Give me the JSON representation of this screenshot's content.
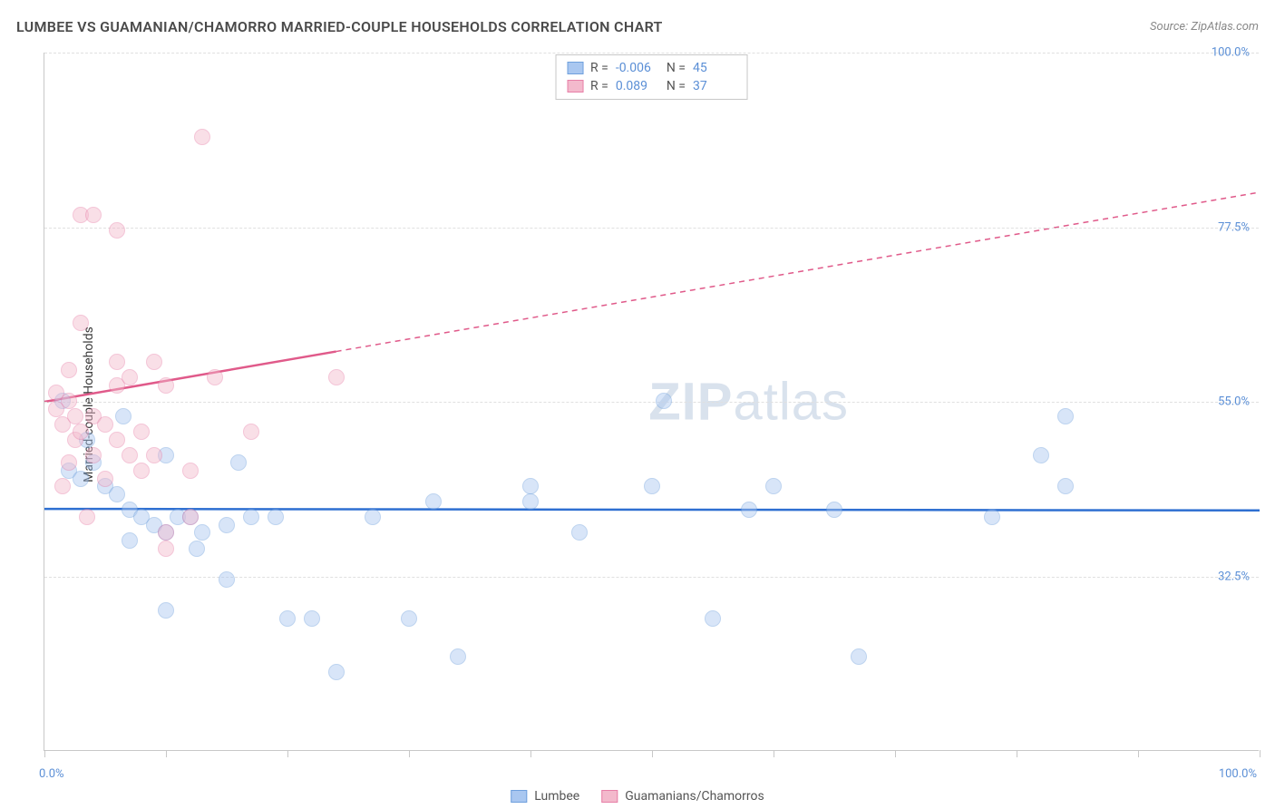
{
  "title": "LUMBEE VS GUAMANIAN/CHAMORRO MARRIED-COUPLE HOUSEHOLDS CORRELATION CHART",
  "source": "Source: ZipAtlas.com",
  "y_axis_label": "Married-couple Households",
  "watermark": {
    "zip": "ZIP",
    "atlas": "atlas"
  },
  "chart": {
    "type": "scatter",
    "xlim": [
      0,
      100
    ],
    "ylim": [
      10,
      100
    ],
    "y_ticks": [
      32.5,
      55.0,
      77.5,
      100.0
    ],
    "y_tick_labels": [
      "32.5%",
      "55.0%",
      "77.5%",
      "100.0%"
    ],
    "x_ticks": [
      0,
      10,
      20,
      30,
      40,
      50,
      60,
      70,
      80,
      90,
      100
    ],
    "x_tick_labels": {
      "first": "0.0%",
      "last": "100.0%"
    },
    "background_color": "#ffffff",
    "grid_color": "#e0e0e0",
    "axis_color": "#c8c8c8",
    "marker_radius": 9,
    "marker_opacity": 0.45,
    "series": [
      {
        "name": "Lumbee",
        "color_fill": "#a9c7f0",
        "color_stroke": "#6fa0dd",
        "trend_color": "#2e6fd1",
        "R": "-0.006",
        "N": "45",
        "trend": {
          "x1": 0,
          "y1": 41.2,
          "x2": 100,
          "y2": 41.0,
          "solid_until_x": 100
        },
        "points": [
          [
            1.5,
            55
          ],
          [
            2,
            46
          ],
          [
            3,
            45
          ],
          [
            3.5,
            50
          ],
          [
            4,
            47
          ],
          [
            5,
            44
          ],
          [
            6,
            43
          ],
          [
            6.5,
            53
          ],
          [
            7,
            41
          ],
          [
            7,
            37
          ],
          [
            8,
            40
          ],
          [
            9,
            39
          ],
          [
            10,
            38
          ],
          [
            10,
            48
          ],
          [
            11,
            40
          ],
          [
            12,
            40
          ],
          [
            12.5,
            36
          ],
          [
            13,
            38
          ],
          [
            10,
            28
          ],
          [
            15,
            39
          ],
          [
            15,
            32
          ],
          [
            16,
            47
          ],
          [
            17,
            40
          ],
          [
            19,
            40
          ],
          [
            20,
            27
          ],
          [
            22,
            27
          ],
          [
            24,
            20
          ],
          [
            27,
            40
          ],
          [
            30,
            27
          ],
          [
            34,
            22
          ],
          [
            40,
            42
          ],
          [
            40,
            44
          ],
          [
            44,
            38
          ],
          [
            50,
            44
          ],
          [
            51,
            55
          ],
          [
            55,
            27
          ],
          [
            58,
            41
          ],
          [
            60,
            44
          ],
          [
            65,
            41
          ],
          [
            67,
            22
          ],
          [
            78,
            40
          ],
          [
            82,
            48
          ],
          [
            84,
            53
          ],
          [
            84,
            44
          ],
          [
            32,
            42
          ]
        ]
      },
      {
        "name": "Guamanians/Chamorros",
        "color_fill": "#f3b9cc",
        "color_stroke": "#e77fa7",
        "trend_color": "#e05a8a",
        "R": "0.089",
        "N": "37",
        "trend": {
          "x1": 0,
          "y1": 55,
          "x2": 100,
          "y2": 82,
          "solid_until_x": 24
        },
        "points": [
          [
            1,
            56
          ],
          [
            1,
            54
          ],
          [
            1.5,
            52
          ],
          [
            1.5,
            44
          ],
          [
            2,
            59
          ],
          [
            2,
            55
          ],
          [
            2,
            47
          ],
          [
            2.5,
            53
          ],
          [
            2.5,
            50
          ],
          [
            3,
            65
          ],
          [
            3,
            79
          ],
          [
            3,
            51
          ],
          [
            3.5,
            40
          ],
          [
            4,
            79
          ],
          [
            4,
            53
          ],
          [
            4,
            48
          ],
          [
            5,
            52
          ],
          [
            5,
            45
          ],
          [
            6,
            77
          ],
          [
            6,
            60
          ],
          [
            6,
            57
          ],
          [
            6,
            50
          ],
          [
            7,
            58
          ],
          [
            7,
            48
          ],
          [
            8,
            51
          ],
          [
            8,
            46
          ],
          [
            9,
            60
          ],
          [
            9,
            48
          ],
          [
            10,
            57
          ],
          [
            10,
            38
          ],
          [
            10,
            36
          ],
          [
            12,
            40
          ],
          [
            12,
            46
          ],
          [
            13,
            89
          ],
          [
            14,
            58
          ],
          [
            17,
            51
          ],
          [
            24,
            58
          ]
        ]
      }
    ]
  },
  "legend_bottom": [
    {
      "label": "Lumbee",
      "fill": "#a9c7f0",
      "stroke": "#6fa0dd"
    },
    {
      "label": "Guamanians/Chamorros",
      "fill": "#f3b9cc",
      "stroke": "#e77fa7"
    }
  ]
}
